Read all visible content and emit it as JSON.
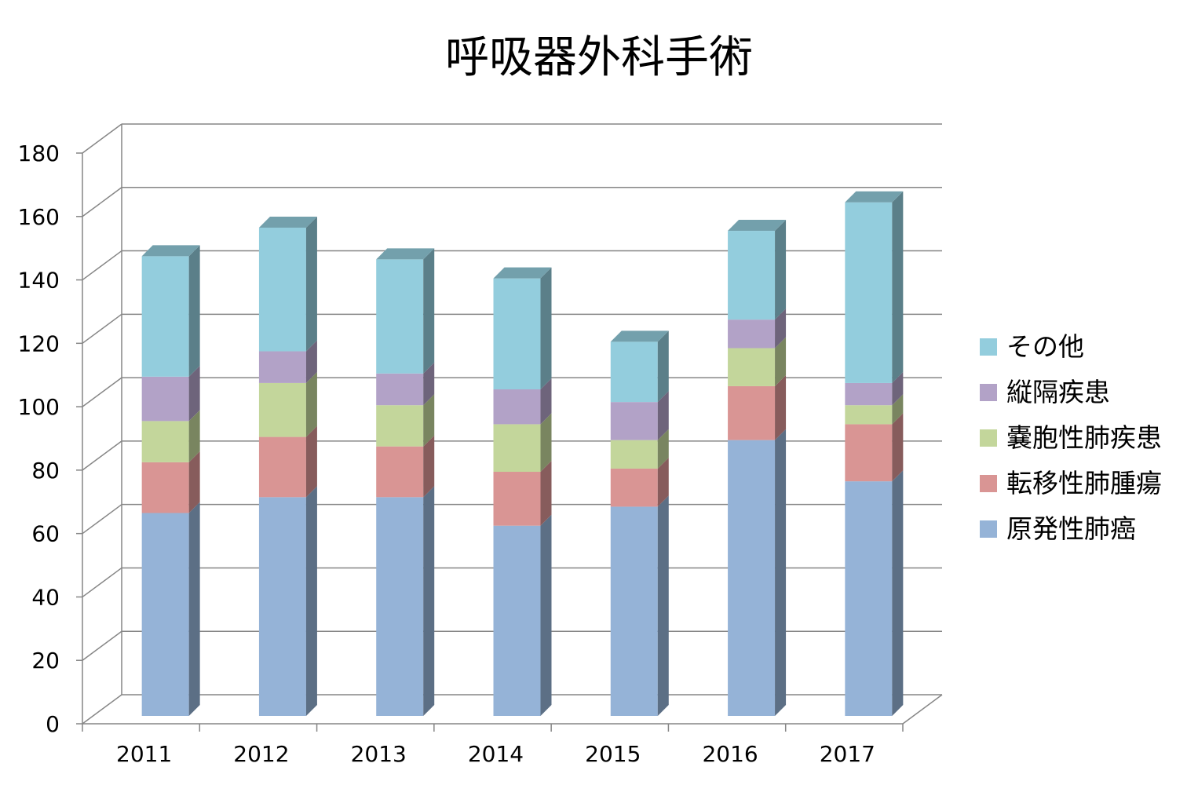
{
  "chart_data": {
    "type": "bar",
    "stacked": true,
    "three_d": true,
    "title": "呼吸器外科手術",
    "categories": [
      "2011",
      "2012",
      "2013",
      "2014",
      "2015",
      "2016",
      "2017"
    ],
    "series": [
      {
        "name": "原発性肺癌",
        "color": "#95b3d7",
        "values": [
          64,
          69,
          69,
          60,
          66,
          87,
          74
        ]
      },
      {
        "name": "転移性肺腫瘍",
        "color": "#d99594",
        "values": [
          16,
          19,
          16,
          17,
          12,
          17,
          18
        ]
      },
      {
        "name": "嚢胞性肺疾患",
        "color": "#c3d69b",
        "values": [
          13,
          17,
          13,
          15,
          9,
          12,
          6
        ]
      },
      {
        "name": "縦隔疾患",
        "color": "#b2a2c7",
        "values": [
          14,
          10,
          10,
          11,
          12,
          9,
          7
        ]
      },
      {
        "name": "その他",
        "color": "#93cddd",
        "values": [
          38,
          39,
          36,
          35,
          19,
          28,
          57
        ]
      }
    ],
    "y_ticks": [
      "0",
      "20",
      "40",
      "60",
      "80",
      "100",
      "120",
      "140",
      "160",
      "180"
    ],
    "ylim": [
      0,
      180
    ],
    "xlabel": "",
    "ylabel": "",
    "grid": true,
    "legend_position": "right",
    "legend_order": [
      "その他",
      "縦隔疾患",
      "嚢胞性肺疾患",
      "転移性肺腫瘍",
      "原発性肺癌"
    ]
  }
}
